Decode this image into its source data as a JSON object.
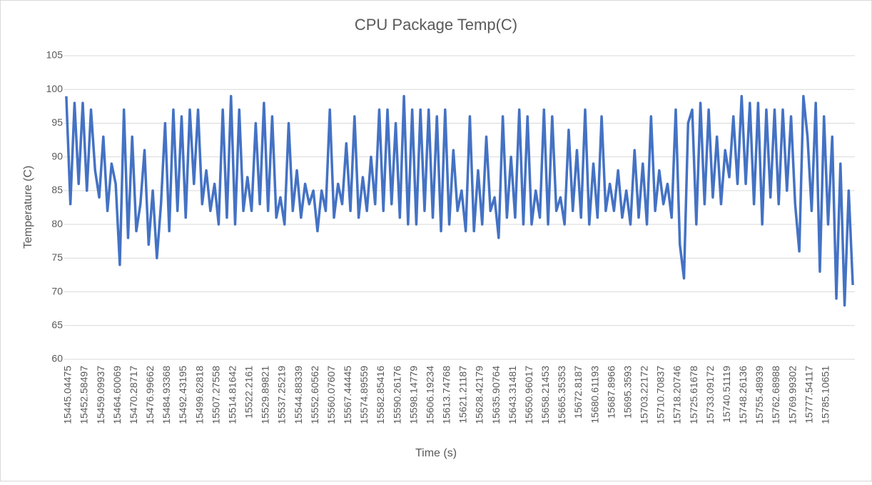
{
  "chart_data": {
    "type": "line",
    "title": "CPU Package Temp(C)",
    "x_label": "Time (s)",
    "y_label": "Temperature (C)",
    "categories": [
      "15445.04475",
      null,
      null,
      null,
      "15452.58497",
      null,
      null,
      null,
      "15459.09937",
      null,
      null,
      null,
      "15464.60069",
      null,
      null,
      null,
      "15470.28717",
      null,
      null,
      null,
      "15476.99662",
      null,
      null,
      null,
      "15484.93368",
      null,
      null,
      null,
      "15492.43195",
      null,
      null,
      null,
      "15499.62818",
      null,
      null,
      null,
      "15507.27558",
      null,
      null,
      null,
      "15514.81642",
      null,
      null,
      null,
      "15522.2161",
      null,
      null,
      null,
      "15529.89821",
      null,
      null,
      null,
      "15537.25219",
      null,
      null,
      null,
      "15544.88339",
      null,
      null,
      null,
      "15552.60562",
      null,
      null,
      null,
      "15560.07607",
      null,
      null,
      null,
      "15567.44445",
      null,
      null,
      null,
      "15574.89559",
      null,
      null,
      null,
      "15582.85416",
      null,
      null,
      null,
      "15590.26176",
      null,
      null,
      null,
      "15598.14779",
      null,
      null,
      null,
      "15606.19234",
      null,
      null,
      null,
      "15613.74768",
      null,
      null,
      null,
      "15621.21187",
      null,
      null,
      null,
      "15628.42179",
      null,
      null,
      null,
      "15635.90764",
      null,
      null,
      null,
      "15643.31481",
      null,
      null,
      null,
      "15650.96017",
      null,
      null,
      null,
      "15658.21453",
      null,
      null,
      null,
      "15665.35353",
      null,
      null,
      null,
      "15672.8187",
      null,
      null,
      null,
      "15680.61193",
      null,
      null,
      null,
      "15687.8966",
      null,
      null,
      null,
      "15695.3593",
      null,
      null,
      null,
      "15703.22172",
      null,
      null,
      null,
      "15710.70837",
      null,
      null,
      null,
      "15718.20746",
      null,
      null,
      null,
      "15725.61678",
      null,
      null,
      null,
      "15733.09172",
      null,
      null,
      null,
      "15740.51119",
      null,
      null,
      null,
      "15748.26136",
      null,
      null,
      null,
      "15755.48939",
      null,
      null,
      null,
      "15762.68988",
      null,
      null,
      null,
      "15769.99302",
      null,
      null,
      null,
      "15777.54117",
      null,
      null,
      null,
      "15785.10651",
      null,
      null,
      null,
      null,
      null,
      null,
      null
    ],
    "values": [
      99,
      83,
      98,
      86,
      98,
      85,
      97,
      88,
      84,
      93,
      82,
      89,
      86,
      74,
      97,
      78,
      93,
      79,
      83,
      91,
      77,
      85,
      75,
      83,
      95,
      79,
      97,
      82,
      96,
      81,
      97,
      86,
      97,
      83,
      88,
      82,
      86,
      80,
      97,
      81,
      99,
      80,
      97,
      82,
      87,
      82,
      95,
      83,
      98,
      82,
      96,
      81,
      84,
      80,
      95,
      82,
      88,
      81,
      86,
      83,
      85,
      79,
      85,
      82,
      97,
      81,
      86,
      83,
      92,
      82,
      96,
      81,
      87,
      82,
      90,
      83,
      97,
      82,
      97,
      83,
      95,
      81,
      99,
      80,
      97,
      80,
      97,
      82,
      97,
      81,
      96,
      79,
      97,
      80,
      91,
      82,
      85,
      79,
      96,
      79,
      88,
      80,
      93,
      82,
      84,
      78,
      96,
      81,
      90,
      81,
      97,
      80,
      96,
      80,
      85,
      81,
      97,
      80,
      96,
      82,
      84,
      80,
      94,
      82,
      91,
      81,
      97,
      80,
      89,
      81,
      96,
      82,
      86,
      82,
      88,
      81,
      85,
      80,
      91,
      81,
      89,
      80,
      96,
      82,
      88,
      83,
      86,
      81,
      97,
      77,
      72,
      95,
      97,
      80,
      98,
      83,
      97,
      84,
      93,
      83,
      91,
      87,
      96,
      86,
      99,
      86,
      98,
      83,
      98,
      80,
      97,
      84,
      97,
      83,
      97,
      85,
      96,
      83,
      76,
      99,
      93,
      82,
      98,
      73,
      96,
      80,
      93,
      69,
      89,
      68,
      85,
      71
    ],
    "color": "#4472c4",
    "ylim": [
      60,
      105
    ],
    "yticks": [
      60,
      65,
      70,
      75,
      80,
      85,
      90,
      95,
      100,
      105
    ],
    "grid": true
  }
}
